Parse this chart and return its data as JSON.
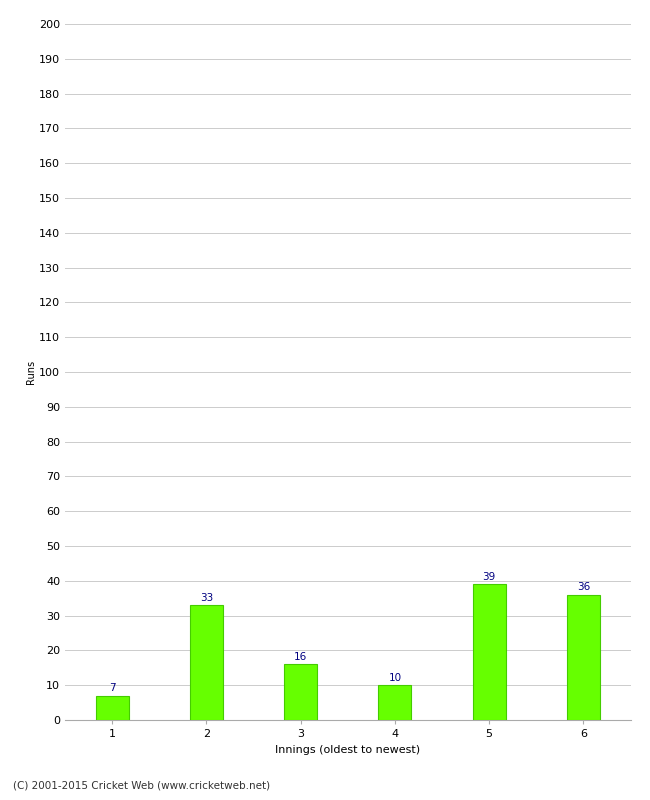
{
  "categories": [
    1,
    2,
    3,
    4,
    5,
    6
  ],
  "values": [
    7,
    33,
    16,
    10,
    39,
    36
  ],
  "bar_color": "#66ff00",
  "bar_edge_color": "#44cc00",
  "label_color": "#000080",
  "xlabel": "Innings (oldest to newest)",
  "ylabel": "Runs",
  "ylim": [
    0,
    200
  ],
  "yticks": [
    0,
    10,
    20,
    30,
    40,
    50,
    60,
    70,
    80,
    90,
    100,
    110,
    120,
    130,
    140,
    150,
    160,
    170,
    180,
    190,
    200
  ],
  "background_color": "#ffffff",
  "footer": "(C) 2001-2015 Cricket Web (www.cricketweb.net)",
  "grid_color": "#cccccc",
  "label_fontsize": 7.5,
  "axis_fontsize": 8,
  "ylabel_fontsize": 7,
  "footer_fontsize": 7.5,
  "bar_width": 0.35
}
